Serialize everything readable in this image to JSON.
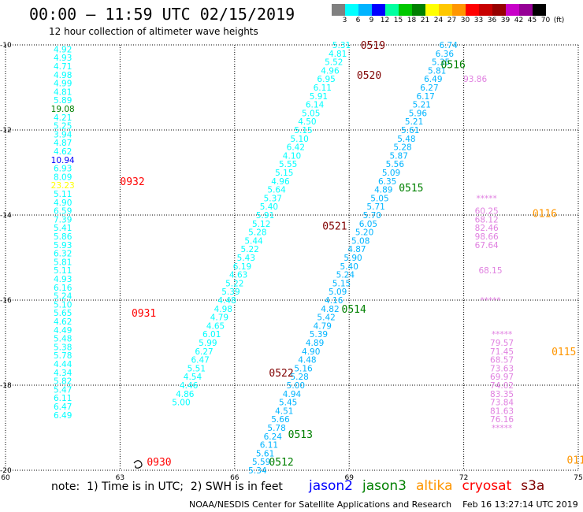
{
  "header": {
    "title": "00:00 – 11:59 UTC 02/15/2019",
    "subtitle": "12 hour collection of altimeter wave heights"
  },
  "colorbar": {
    "labels": [
      "3",
      "6",
      "9",
      "12",
      "15",
      "18",
      "21",
      "24",
      "27",
      "30",
      "33",
      "36",
      "39",
      "42",
      "45",
      "70",
      "(ft)"
    ],
    "colors": [
      "#808080",
      "#00ffff",
      "#00b4ff",
      "#0000ff",
      "#00ffa0",
      "#00c800",
      "#008000",
      "#ffff00",
      "#ffc800",
      "#ff9600",
      "#ff0000",
      "#c80000",
      "#960000",
      "#c800c8",
      "#960096",
      "#000000"
    ]
  },
  "footer": {
    "note": "note:  1) Time is in UTC;  2) SWH is in feet",
    "credit": "NOAA/NESDIS Center for Satellite Applications and Research    Feb 16 13:27:14 UTC 2019"
  },
  "legend": [
    {
      "name": "jason2",
      "color": "#0000ff"
    },
    {
      "name": "jason3",
      "color": "#008000"
    },
    {
      "name": "altika",
      "color": "#ff9600"
    },
    {
      "name": "cryosat",
      "color": "#ff0000"
    },
    {
      "name": "s3a",
      "color": "#800000"
    }
  ],
  "chart_data": {
    "type": "scatter",
    "title": "12 hour collection of altimeter wave heights",
    "xlim": [
      60,
      75
    ],
    "ylim": [
      -20,
      -10
    ],
    "x_ticks": [
      60,
      63,
      66,
      69,
      72,
      75
    ],
    "y_ticks": [
      -10,
      -12,
      -14,
      -16,
      -18,
      -20
    ],
    "grid": true,
    "tracks": [
      {
        "satellite": "cryosat",
        "color": "#00ffff",
        "points": [
          [
            61.5,
            -10.1,
            "4.92"
          ],
          [
            61.5,
            -10.3,
            "4.93"
          ],
          [
            61.5,
            -10.5,
            "4.71"
          ],
          [
            61.5,
            -10.7,
            "4.98"
          ],
          [
            61.5,
            -10.9,
            "4.99"
          ],
          [
            61.5,
            -11.1,
            "4.81"
          ],
          [
            61.5,
            -11.3,
            "5.89"
          ],
          [
            61.5,
            -11.7,
            "4.21"
          ],
          [
            61.5,
            -11.9,
            "5.25"
          ],
          [
            61.5,
            -12.1,
            "3.94"
          ],
          [
            61.5,
            -12.3,
            "4.87"
          ],
          [
            61.5,
            -12.5,
            "4.62"
          ],
          [
            61.5,
            -12.9,
            "6.93"
          ],
          [
            61.5,
            -13.1,
            "8.09"
          ],
          [
            61.5,
            -13.5,
            "5.11"
          ],
          [
            61.5,
            -13.7,
            "4.90"
          ],
          [
            61.5,
            -13.9,
            "6.59"
          ],
          [
            61.5,
            -14.1,
            "7.39"
          ],
          [
            61.5,
            -14.3,
            "5.41"
          ],
          [
            61.5,
            -14.5,
            "5.86"
          ],
          [
            61.5,
            -14.7,
            "5.93"
          ],
          [
            61.5,
            -14.9,
            "6.32"
          ],
          [
            61.5,
            -15.1,
            "5.81"
          ],
          [
            61.5,
            -15.3,
            "5.11"
          ],
          [
            61.5,
            -15.5,
            "4.93"
          ],
          [
            61.5,
            -15.7,
            "6.16"
          ],
          [
            61.5,
            -15.9,
            "5.24"
          ],
          [
            61.5,
            -16.1,
            "5.10"
          ],
          [
            61.5,
            -16.3,
            "5.65"
          ],
          [
            61.5,
            -16.5,
            "4.62"
          ],
          [
            61.5,
            -16.7,
            "4.49"
          ],
          [
            61.5,
            -16.9,
            "5.48"
          ],
          [
            61.5,
            -17.1,
            "5.38"
          ],
          [
            61.5,
            -17.3,
            "5.78"
          ],
          [
            61.5,
            -17.5,
            "4.44"
          ],
          [
            61.5,
            -17.7,
            "4.34"
          ],
          [
            61.5,
            -17.9,
            "5.82"
          ],
          [
            61.5,
            -18.1,
            "5.47"
          ],
          [
            61.5,
            -18.3,
            "6.11"
          ],
          [
            61.5,
            -18.5,
            "6.47"
          ],
          [
            61.5,
            -18.7,
            "6.49"
          ]
        ]
      },
      {
        "satellite": "cryosat",
        "color": "#008000",
        "points": [
          [
            61.5,
            -11.5,
            "19.08"
          ]
        ]
      },
      {
        "satellite": "cryosat",
        "color": "#0000ff",
        "points": [
          [
            61.5,
            -12.7,
            "10.94"
          ]
        ]
      },
      {
        "satellite": "cryosat",
        "color": "#ffff00",
        "points": [
          [
            61.5,
            -13.3,
            "23.23"
          ]
        ]
      },
      {
        "satellite": "s3a",
        "color": "#00ffff",
        "points": [
          [
            68.8,
            -10.0,
            "5.31"
          ],
          [
            68.7,
            -10.2,
            "4.81"
          ],
          [
            68.6,
            -10.4,
            "5.52"
          ],
          [
            68.5,
            -10.6,
            "4.96"
          ],
          [
            68.4,
            -10.8,
            "6.95"
          ],
          [
            68.3,
            -11.0,
            "6.11"
          ],
          [
            68.2,
            -11.2,
            "5.91"
          ],
          [
            68.1,
            -11.4,
            "6.14"
          ],
          [
            68.0,
            -11.6,
            "5.05"
          ],
          [
            67.9,
            -11.8,
            "4.50"
          ],
          [
            67.8,
            -12.0,
            "5.15"
          ],
          [
            67.7,
            -12.2,
            "5.10"
          ],
          [
            67.6,
            -12.4,
            "6.42"
          ],
          [
            67.5,
            -12.6,
            "4.10"
          ],
          [
            67.4,
            -12.8,
            "5.55"
          ],
          [
            67.3,
            -13.0,
            "5.15"
          ],
          [
            67.2,
            -13.2,
            "4.96"
          ],
          [
            67.1,
            -13.4,
            "5.64"
          ],
          [
            67.0,
            -13.6,
            "5.37"
          ],
          [
            66.9,
            -13.8,
            "5.40"
          ],
          [
            66.8,
            -14.0,
            "5.91"
          ],
          [
            66.7,
            -14.2,
            "5.12"
          ],
          [
            66.6,
            -14.4,
            "5.28"
          ],
          [
            66.5,
            -14.6,
            "5.44"
          ],
          [
            66.4,
            -14.8,
            "5.22"
          ],
          [
            66.3,
            -15.0,
            "5.43"
          ],
          [
            66.2,
            -15.2,
            "6.19"
          ],
          [
            66.1,
            -15.4,
            "4.63"
          ],
          [
            66.0,
            -15.6,
            "5.22"
          ],
          [
            65.9,
            -15.8,
            "5.39"
          ],
          [
            65.8,
            -16.0,
            "4.48"
          ],
          [
            65.7,
            -16.2,
            "4.98"
          ],
          [
            65.6,
            -16.4,
            "4.79"
          ],
          [
            65.5,
            -16.6,
            "4.65"
          ],
          [
            65.4,
            -16.8,
            "6.01"
          ],
          [
            65.3,
            -17.0,
            "5.99"
          ],
          [
            65.2,
            -17.2,
            "6.27"
          ],
          [
            65.1,
            -17.4,
            "6.47"
          ],
          [
            65.0,
            -17.6,
            "5.51"
          ],
          [
            64.9,
            -17.8,
            "4.54"
          ],
          [
            64.8,
            -18.0,
            "4.46"
          ],
          [
            64.7,
            -18.2,
            "4.86"
          ],
          [
            64.6,
            -18.4,
            "5.00"
          ]
        ]
      },
      {
        "satellite": "s3a",
        "color": "#00b4ff",
        "points": [
          [
            71.6,
            -10.0,
            "6.74"
          ],
          [
            71.5,
            -10.2,
            "6.36"
          ],
          [
            71.4,
            -10.4,
            "5.35"
          ],
          [
            71.3,
            -10.6,
            "5.81"
          ],
          [
            71.2,
            -10.8,
            "6.49"
          ],
          [
            71.1,
            -11.0,
            "6.27"
          ],
          [
            71.0,
            -11.2,
            "6.17"
          ],
          [
            70.9,
            -11.4,
            "5.21"
          ],
          [
            70.8,
            -11.6,
            "5.96"
          ],
          [
            70.7,
            -11.8,
            "5.21"
          ],
          [
            70.6,
            -12.0,
            "5.61"
          ],
          [
            70.5,
            -12.2,
            "5.48"
          ],
          [
            70.4,
            -12.4,
            "5.28"
          ],
          [
            70.3,
            -12.6,
            "5.87"
          ],
          [
            70.2,
            -12.8,
            "5.56"
          ],
          [
            70.1,
            -13.0,
            "5.09"
          ],
          [
            70.0,
            -13.2,
            "6.35"
          ],
          [
            69.9,
            -13.4,
            "4.89"
          ],
          [
            69.8,
            -13.6,
            "5.05"
          ],
          [
            69.7,
            -13.8,
            "5.71"
          ],
          [
            69.6,
            -14.0,
            "5.70"
          ],
          [
            69.5,
            -14.2,
            "6.05"
          ],
          [
            69.4,
            -14.4,
            "5.20"
          ],
          [
            69.3,
            -14.6,
            "5.08"
          ],
          [
            69.2,
            -14.8,
            "4.87"
          ],
          [
            69.1,
            -15.0,
            "5.90"
          ],
          [
            69.0,
            -15.2,
            "5.40"
          ],
          [
            68.9,
            -15.4,
            "5.24"
          ],
          [
            68.8,
            -15.6,
            "5.15"
          ],
          [
            68.7,
            -15.8,
            "5.09"
          ],
          [
            68.6,
            -16.0,
            "4.16"
          ],
          [
            68.5,
            -16.2,
            "4.82"
          ],
          [
            68.4,
            -16.4,
            "5.42"
          ],
          [
            68.3,
            -16.6,
            "4.79"
          ],
          [
            68.2,
            -16.8,
            "5.39"
          ],
          [
            68.1,
            -17.0,
            "4.89"
          ],
          [
            68.0,
            -17.2,
            "4.90"
          ],
          [
            67.9,
            -17.4,
            "4.48"
          ],
          [
            67.8,
            -17.6,
            "5.16"
          ],
          [
            67.7,
            -17.8,
            "5.28"
          ],
          [
            67.6,
            -18.0,
            "5.00"
          ],
          [
            67.5,
            -18.2,
            "4.94"
          ],
          [
            67.4,
            -18.4,
            "5.45"
          ],
          [
            67.3,
            -18.6,
            "4.51"
          ],
          [
            67.2,
            -18.8,
            "5.66"
          ],
          [
            67.1,
            -19.0,
            "5.78"
          ],
          [
            67.0,
            -19.2,
            "6.24"
          ],
          [
            66.9,
            -19.4,
            "6.11"
          ],
          [
            66.8,
            -19.6,
            "5.61"
          ],
          [
            66.7,
            -19.8,
            "5.59"
          ],
          [
            66.6,
            -20.0,
            "5.34"
          ]
        ]
      },
      {
        "satellite": "altika",
        "color": "#e080e0",
        "points": [
          [
            72.3,
            -10.8,
            "93.86"
          ],
          [
            72.6,
            -13.6,
            "*****"
          ],
          [
            72.6,
            -13.9,
            "60.25"
          ],
          [
            72.6,
            -14.1,
            "68.12"
          ],
          [
            72.6,
            -14.3,
            "82.46"
          ],
          [
            72.6,
            -14.5,
            "98.66"
          ],
          [
            72.6,
            -14.7,
            "67.64"
          ],
          [
            72.7,
            -15.3,
            "68.15"
          ],
          [
            72.7,
            -16.0,
            "*****"
          ],
          [
            73.0,
            -16.8,
            "*****"
          ],
          [
            73.0,
            -17.0,
            "79.57"
          ],
          [
            73.0,
            -17.2,
            "71.45"
          ],
          [
            73.0,
            -17.4,
            "68.57"
          ],
          [
            73.0,
            -17.6,
            "73.63"
          ],
          [
            73.0,
            -17.8,
            "69.97"
          ],
          [
            73.0,
            -18.0,
            "74.02"
          ],
          [
            73.0,
            -18.2,
            "83.35"
          ],
          [
            73.0,
            -18.4,
            "73.84"
          ],
          [
            73.0,
            -18.6,
            "81.63"
          ],
          [
            73.0,
            -18.8,
            "76.16"
          ],
          [
            73.0,
            -19.0,
            "*****"
          ]
        ]
      }
    ],
    "time_labels": [
      {
        "text": "0519",
        "x": 69.3,
        "y": -10.0,
        "color": "#800000"
      },
      {
        "text": "0520",
        "x": 69.2,
        "y": -10.7,
        "color": "#800000"
      },
      {
        "text": "0516",
        "x": 71.4,
        "y": -10.45,
        "color": "#008000"
      },
      {
        "text": "0932",
        "x": 63.0,
        "y": -13.2,
        "color": "#ff0000"
      },
      {
        "text": "0116",
        "x": 73.8,
        "y": -13.95,
        "color": "#ff9600"
      },
      {
        "text": "0515",
        "x": 70.3,
        "y": -13.35,
        "color": "#008000"
      },
      {
        "text": "0521",
        "x": 68.3,
        "y": -14.25,
        "color": "#800000"
      },
      {
        "text": "0514",
        "x": 68.8,
        "y": -16.2,
        "color": "#008000"
      },
      {
        "text": "0931",
        "x": 63.3,
        "y": -16.3,
        "color": "#ff0000"
      },
      {
        "text": "0115",
        "x": 74.3,
        "y": -17.2,
        "color": "#ff9600"
      },
      {
        "text": "0522",
        "x": 66.9,
        "y": -17.7,
        "color": "#800000"
      },
      {
        "text": "0513",
        "x": 67.4,
        "y": -19.15,
        "color": "#008000"
      },
      {
        "text": "0930",
        "x": 63.7,
        "y": -19.8,
        "color": "#ff0000"
      },
      {
        "text": "0512",
        "x": 66.9,
        "y": -19.8,
        "color": "#008000"
      },
      {
        "text": "011",
        "x": 74.7,
        "y": -19.75,
        "color": "#ff9600"
      }
    ]
  }
}
